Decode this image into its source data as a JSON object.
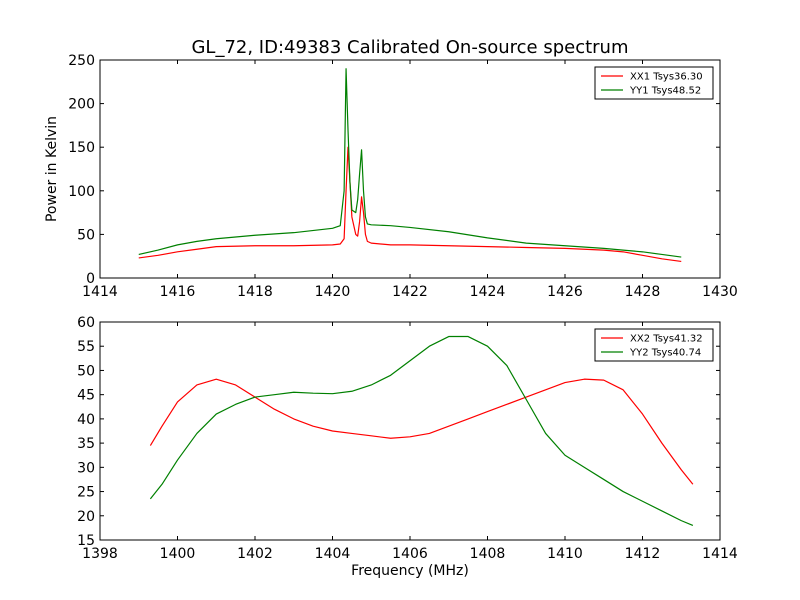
{
  "figure": {
    "title": "GL_72, ID:49383 Calibrated On-source spectrum"
  },
  "colors": {
    "red": "#ff0000",
    "green": "#008000"
  },
  "chart_data": [
    {
      "type": "line",
      "title": "GL_72, ID:49383 Calibrated On-source spectrum",
      "xlabel": "",
      "ylabel": "Power in Kelvin",
      "xlim": [
        1414,
        1430
      ],
      "ylim": [
        0,
        250
      ],
      "xticks": [
        1414,
        1416,
        1418,
        1420,
        1422,
        1424,
        1426,
        1428,
        1430
      ],
      "yticks": [
        0,
        50,
        100,
        150,
        200,
        250
      ],
      "grid": false,
      "legend_position": "top-right",
      "series": [
        {
          "name": "XX1 Tsys36.30",
          "color": "#ff0000",
          "x": [
            1415.0,
            1415.5,
            1416.0,
            1416.5,
            1417.0,
            1418.0,
            1419.0,
            1420.0,
            1420.2,
            1420.3,
            1420.35,
            1420.4,
            1420.45,
            1420.5,
            1420.6,
            1420.65,
            1420.7,
            1420.75,
            1420.8,
            1420.85,
            1420.9,
            1421.0,
            1421.5,
            1422.0,
            1423.0,
            1424.0,
            1425.0,
            1426.0,
            1427.0,
            1427.5,
            1428.0,
            1428.5,
            1429.0
          ],
          "y": [
            23,
            26,
            30,
            33,
            36,
            37,
            37,
            38,
            39,
            45,
            100,
            150,
            110,
            70,
            50,
            48,
            65,
            93,
            75,
            50,
            42,
            40,
            38,
            38,
            37,
            36,
            35,
            34,
            32,
            30,
            26,
            22,
            19
          ]
        },
        {
          "name": "YY1 Tsys48.52",
          "color": "#008000",
          "x": [
            1415.0,
            1415.5,
            1416.0,
            1416.5,
            1417.0,
            1418.0,
            1419.0,
            1420.0,
            1420.2,
            1420.3,
            1420.35,
            1420.4,
            1420.45,
            1420.5,
            1420.6,
            1420.65,
            1420.7,
            1420.75,
            1420.8,
            1420.85,
            1420.9,
            1421.0,
            1421.5,
            1422.0,
            1423.0,
            1424.0,
            1425.0,
            1426.0,
            1427.0,
            1427.5,
            1428.0,
            1428.5,
            1429.0
          ],
          "y": [
            27,
            32,
            38,
            42,
            45,
            49,
            52,
            57,
            60,
            100,
            240,
            170,
            110,
            78,
            75,
            90,
            120,
            147,
            100,
            70,
            62,
            61,
            60,
            58,
            53,
            46,
            40,
            37,
            34,
            32,
            30,
            27,
            24
          ]
        }
      ]
    },
    {
      "type": "line",
      "title": "",
      "xlabel": "Frequency (MHz)",
      "ylabel": "",
      "xlim": [
        1398,
        1414
      ],
      "ylim": [
        15,
        60
      ],
      "xticks": [
        1398,
        1400,
        1402,
        1404,
        1406,
        1408,
        1410,
        1412,
        1414
      ],
      "yticks": [
        15,
        20,
        25,
        30,
        35,
        40,
        45,
        50,
        55,
        60
      ],
      "grid": false,
      "legend_position": "top-right",
      "series": [
        {
          "name": "XX2 Tsys41.32",
          "color": "#ff0000",
          "x": [
            1399.3,
            1399.6,
            1400.0,
            1400.5,
            1401.0,
            1401.5,
            1402.0,
            1402.5,
            1403.0,
            1403.5,
            1404.0,
            1404.5,
            1405.0,
            1405.5,
            1406.0,
            1406.5,
            1407.0,
            1407.5,
            1408.0,
            1408.5,
            1409.0,
            1409.5,
            1410.0,
            1410.5,
            1411.0,
            1411.5,
            1412.0,
            1412.5,
            1413.0,
            1413.3
          ],
          "y": [
            34.5,
            38.5,
            43.5,
            47,
            48.2,
            47,
            44.5,
            42,
            40,
            38.5,
            37.5,
            37,
            36.5,
            36,
            36.3,
            37,
            38.5,
            40,
            41.5,
            43,
            44.5,
            46,
            47.5,
            48.2,
            48,
            46,
            41,
            35,
            29.5,
            26.5
          ]
        },
        {
          "name": "YY2 Tsys40.74",
          "color": "#008000",
          "x": [
            1399.3,
            1399.6,
            1400.0,
            1400.5,
            1401.0,
            1401.5,
            1402.0,
            1402.5,
            1403.0,
            1403.5,
            1404.0,
            1404.5,
            1405.0,
            1405.5,
            1406.0,
            1406.5,
            1407.0,
            1407.5,
            1408.0,
            1408.5,
            1409.0,
            1409.5,
            1410.0,
            1410.5,
            1411.0,
            1411.5,
            1412.0,
            1412.5,
            1413.0,
            1413.3
          ],
          "y": [
            23.5,
            26.5,
            31.5,
            37,
            41,
            43,
            44.5,
            45,
            45.5,
            45.3,
            45.2,
            45.7,
            47,
            49,
            52,
            55,
            57,
            57,
            55,
            51,
            44,
            37,
            32.5,
            30,
            27.5,
            25,
            23,
            21,
            19,
            18
          ]
        }
      ]
    }
  ]
}
